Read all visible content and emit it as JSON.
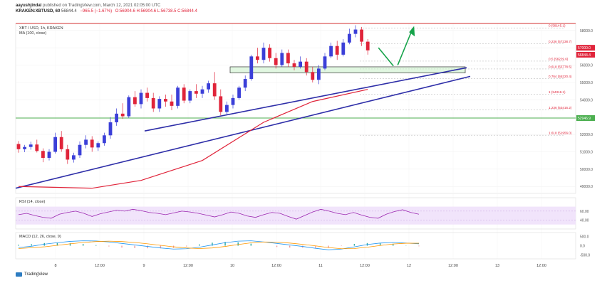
{
  "header": {
    "author": "aayushjindal",
    "published": "published on TradingView.com, March 12, 2021 02:05:00 UTC",
    "symbol": "KRAKEN:XBTUSD, 60",
    "last": "56844.4",
    "change": "−965.5 (−1.67%)",
    "ohlc": "O:56904.6 H:56904.6 L:56738.5 C:56844.4"
  },
  "panes": {
    "main_title": "XBT / USD, 1h, KRAKEN",
    "ma_label": "MA (100, close)",
    "rsi_label": "RSI (14, close)",
    "macd_label": "MACD (12, 26, close, 9)"
  },
  "branding": {
    "name": "TradingView"
  },
  "colors": {
    "up": "#3b3fd8",
    "down": "#e0243a",
    "ma": "#e0243a",
    "trend": "#2e2ea8",
    "support": "#4caf50",
    "resistance": "#d32f2f",
    "arrow": "#16a34a",
    "rsi_fill": "#f1e4fb",
    "rsi_line": "#9c27b0",
    "macd_line": "#2196f3",
    "signal_line": "#ff9800"
  },
  "chart_data": {
    "type": "candlestick",
    "y_ticks": [
      49000,
      50000,
      51000,
      52000,
      53000,
      54000,
      55000,
      56000,
      57000,
      58000
    ],
    "ylim": [
      48600,
      58400
    ],
    "x_ticks": [
      "8",
      "12:00",
      "9",
      "12:00",
      "10",
      "12:00",
      "11",
      "12:00",
      "12",
      "12:00",
      "13",
      "12:00"
    ],
    "candles": [
      [
        51450,
        51620,
        50950,
        51150
      ],
      [
        51150,
        51400,
        50980,
        51280
      ],
      [
        51280,
        51580,
        51120,
        51420
      ],
      [
        51420,
        51700,
        50960,
        51050
      ],
      [
        51050,
        51200,
        50400,
        50650
      ],
      [
        50650,
        51150,
        50500,
        51000
      ],
      [
        51000,
        52100,
        50900,
        51850
      ],
      [
        51850,
        52200,
        51000,
        51150
      ],
      [
        51150,
        51400,
        50300,
        50550
      ],
      [
        50550,
        50950,
        50380,
        50800
      ],
      [
        50800,
        51600,
        50650,
        51400
      ],
      [
        51400,
        51950,
        51200,
        51700
      ],
      [
        51700,
        51900,
        51000,
        51250
      ],
      [
        51250,
        51600,
        51050,
        51500
      ],
      [
        51500,
        52100,
        51350,
        51950
      ],
      [
        51950,
        53000,
        51750,
        52700
      ],
      [
        52700,
        53500,
        52500,
        53200
      ],
      [
        53200,
        53800,
        52900,
        53050
      ],
      [
        53050,
        54250,
        52950,
        54150
      ],
      [
        54150,
        54500,
        53600,
        53750
      ],
      [
        53750,
        54600,
        53500,
        54400
      ],
      [
        54400,
        54700,
        53900,
        54100
      ],
      [
        54100,
        54400,
        53300,
        53500
      ],
      [
        53500,
        54200,
        53300,
        54050
      ],
      [
        54050,
        54300,
        53600,
        53900
      ],
      [
        53900,
        54300,
        53400,
        53650
      ],
      [
        53650,
        54800,
        53500,
        54700
      ],
      [
        54700,
        54900,
        53800,
        53950
      ],
      [
        53950,
        54600,
        53800,
        54500
      ],
      [
        54500,
        54900,
        54100,
        54350
      ],
      [
        54350,
        54800,
        54100,
        54600
      ],
      [
        54600,
        55100,
        54400,
        54950
      ],
      [
        54950,
        55600,
        54000,
        54200
      ],
      [
        54200,
        54600,
        53100,
        53300
      ],
      [
        53300,
        53900,
        53100,
        53700
      ],
      [
        53700,
        54300,
        53500,
        54100
      ],
      [
        54100,
        54800,
        54000,
        54700
      ],
      [
        54700,
        55400,
        54500,
        55200
      ],
      [
        55200,
        56600,
        55100,
        56500
      ],
      [
        56500,
        57000,
        56100,
        56300
      ],
      [
        56300,
        57300,
        56100,
        57000
      ],
      [
        57000,
        57200,
        56200,
        56400
      ],
      [
        56400,
        56700,
        55800,
        56000
      ],
      [
        56000,
        56900,
        55900,
        56700
      ],
      [
        56700,
        56900,
        55900,
        56100
      ],
      [
        56100,
        56300,
        55700,
        55900
      ],
      [
        55900,
        56500,
        55800,
        56200
      ],
      [
        56200,
        56400,
        55400,
        55600
      ],
      [
        55600,
        55900,
        55000,
        55150
      ],
      [
        55150,
        56000,
        54900,
        55800
      ],
      [
        55800,
        56700,
        55700,
        56500
      ],
      [
        56500,
        57300,
        56400,
        57100
      ],
      [
        57100,
        57400,
        56300,
        56600
      ],
      [
        56600,
        57500,
        56500,
        57300
      ],
      [
        57300,
        58100,
        57200,
        57800
      ],
      [
        57800,
        58300,
        57600,
        58050
      ],
      [
        58050,
        58200,
        57100,
        57350
      ],
      [
        57350,
        57500,
        56600,
        56850
      ]
    ],
    "ma100": [
      [
        0,
        49000
      ],
      [
        12,
        48900
      ],
      [
        20,
        49350
      ],
      [
        30,
        50500
      ],
      [
        40,
        52700
      ],
      [
        48,
        53900
      ],
      [
        57,
        54600
      ]
    ],
    "fib_levels": [
      {
        "ratio": "0 (58145.1)",
        "price": 58145
      },
      {
        "ratio": "0.236 (57238.7)",
        "price": 57238
      },
      {
        "ratio": "0.5 (56229.6)",
        "price": 56229
      },
      {
        "ratio": "0.618 (55778.5)",
        "price": 55778
      },
      {
        "ratio": "0.764 (55220.4)",
        "price": 55220
      },
      {
        "ratio": "1 (54318.1)",
        "price": 54318
      },
      {
        "ratio": "1.236 (53416.2)",
        "price": 53416
      },
      {
        "ratio": "1.618 (51956.0)",
        "price": 51956
      }
    ],
    "support_level": {
      "label": "52946.9",
      "price": 52946
    },
    "resistance_level": 58400,
    "price_labels": [
      {
        "text": "57000.0",
        "price": 57000
      },
      {
        "text": "56844.4",
        "price": 56844
      }
    ],
    "rsi": {
      "ticks": [
        60,
        40
      ],
      "values": [
        52,
        55,
        50,
        46,
        44,
        53,
        57,
        60,
        55,
        48,
        54,
        58,
        62,
        60,
        64,
        61,
        57,
        55,
        52,
        56,
        60,
        58,
        55,
        51,
        47,
        52,
        58,
        55,
        49,
        46,
        52,
        57,
        55,
        48,
        42,
        50,
        58,
        64,
        60,
        55,
        52,
        57,
        51,
        46,
        44,
        53,
        59,
        63,
        57,
        53
      ]
    },
    "macd": {
      "ticks": [
        500,
        0,
        -500
      ],
      "macd": [
        -100,
        -30,
        80,
        160,
        230,
        260,
        250,
        200,
        120,
        40,
        -40,
        -120,
        -180,
        -160,
        -80,
        40,
        160,
        240,
        260,
        200,
        120,
        40,
        -40,
        -140,
        -220,
        -180,
        -60,
        60,
        140,
        170,
        140,
        100
      ],
      "signal": [
        -150,
        -110,
        -60,
        20,
        100,
        170,
        220,
        240,
        220,
        170,
        100,
        20,
        -60,
        -120,
        -150,
        -120,
        -40,
        60,
        150,
        200,
        190,
        140,
        70,
        -10,
        -100,
        -160,
        -150,
        -80,
        10,
        90,
        130,
        130
      ]
    }
  }
}
